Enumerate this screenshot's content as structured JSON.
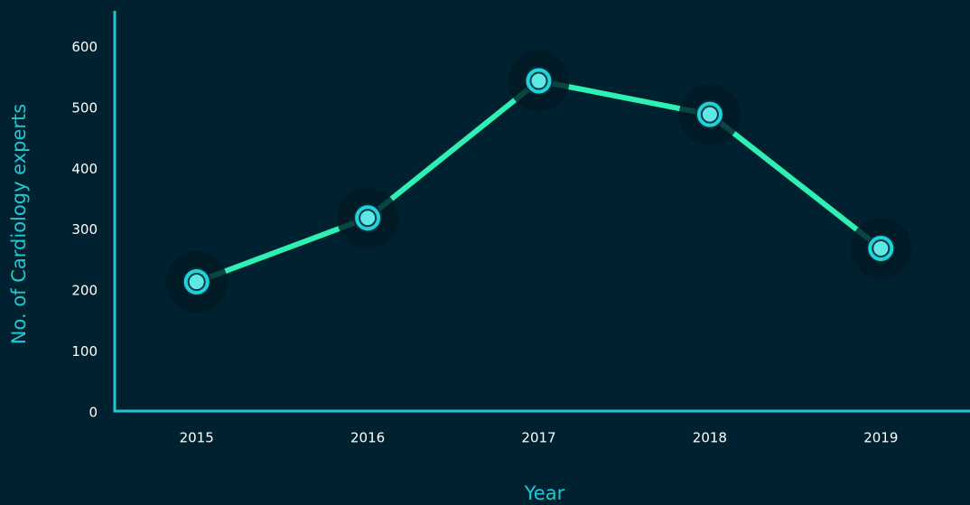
{
  "chart_data": {
    "type": "line",
    "x_label": "Year",
    "y_label": "No. of Cardiology experts",
    "categories": [
      "2015",
      "2016",
      "2017",
      "2018",
      "2019"
    ],
    "series": [
      {
        "name": "No. of Cardiology experts",
        "color": "#2ef0b2",
        "marker_color": "#1fd3d8",
        "values": [
          215,
          320,
          545,
          490,
          270
        ]
      }
    ],
    "ylim": [
      0,
      660
    ],
    "yticks": [
      0,
      100,
      200,
      300,
      400,
      500,
      600
    ],
    "axis_color": "#1fc9d2",
    "background": "#002230"
  }
}
